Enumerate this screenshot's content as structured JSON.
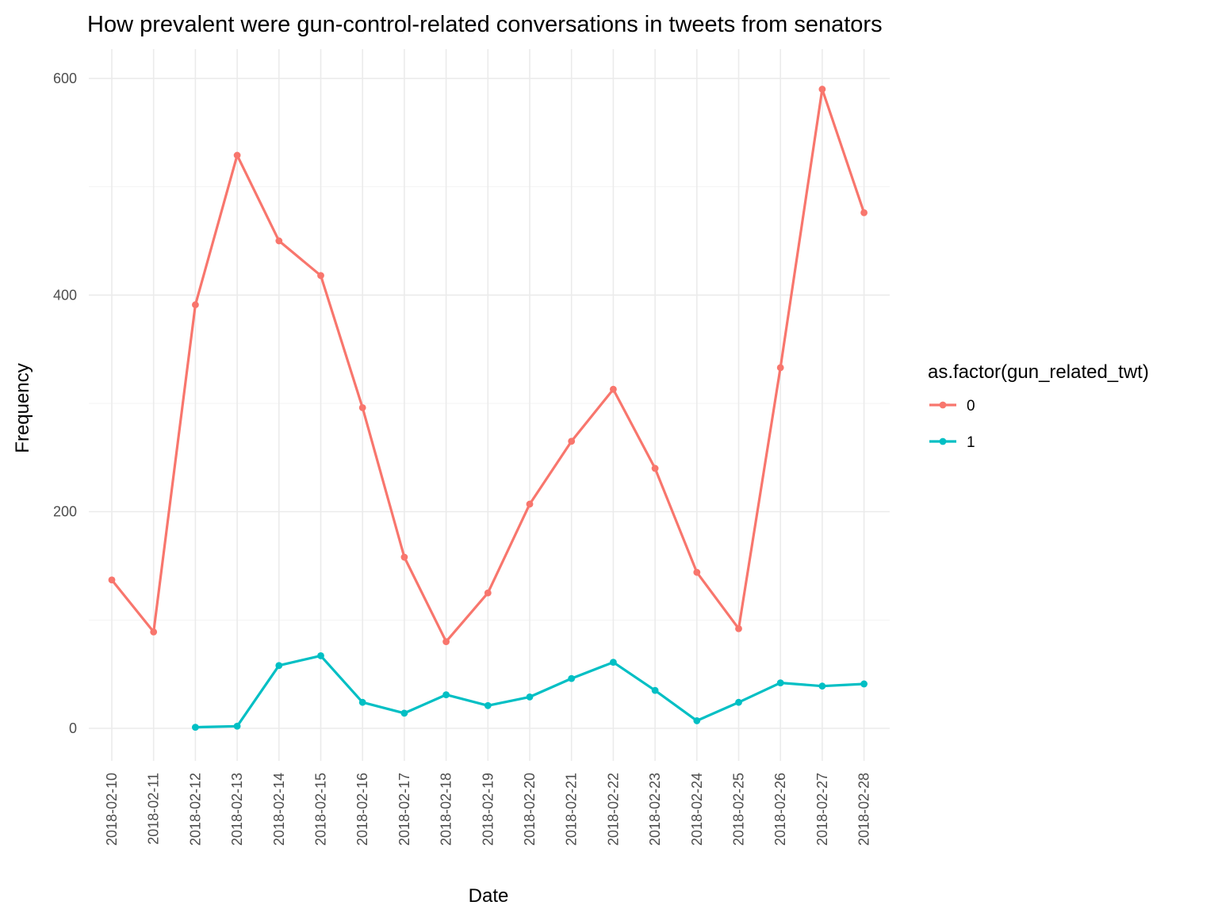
{
  "chart_data": {
    "type": "line",
    "title": "How prevalent were gun-control-related conversations in tweets from senators",
    "xlabel": "Date",
    "ylabel": "Frequency",
    "categories": [
      "2018-02-10",
      "2018-02-11",
      "2018-02-12",
      "2018-02-13",
      "2018-02-14",
      "2018-02-15",
      "2018-02-16",
      "2018-02-17",
      "2018-02-18",
      "2018-02-19",
      "2018-02-20",
      "2018-02-21",
      "2018-02-22",
      "2018-02-23",
      "2018-02-24",
      "2018-02-25",
      "2018-02-26",
      "2018-02-27",
      "2018-02-28"
    ],
    "ylim": [
      -30,
      627
    ],
    "yticks": [
      0,
      200,
      400,
      600
    ],
    "grid": true,
    "legend": {
      "title": "as.factor(gun_related_twt)",
      "position": "right"
    },
    "series": [
      {
        "name": "0",
        "color": "#F8766D",
        "values": [
          137,
          89,
          391,
          529,
          450,
          418,
          296,
          158,
          80,
          125,
          207,
          265,
          313,
          240,
          144,
          92,
          333,
          590,
          476
        ]
      },
      {
        "name": "1",
        "color": "#00BFC4",
        "values": [
          null,
          null,
          1,
          2,
          58,
          67,
          24,
          14,
          31,
          21,
          29,
          46,
          61,
          35,
          7,
          24,
          42,
          39,
          41
        ]
      }
    ]
  }
}
